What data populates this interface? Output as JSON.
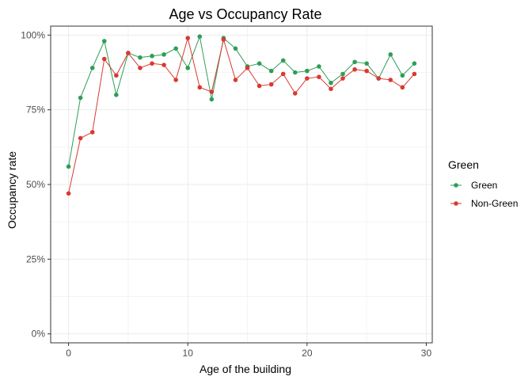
{
  "chart_data": {
    "type": "line",
    "title": "Age vs Occupancy Rate",
    "xlabel": "Age of the building",
    "ylabel": "Occupancy rate",
    "xlim": [
      -1.5,
      30.5
    ],
    "ylim": [
      -0.03,
      1.03
    ],
    "x_ticks": [
      0,
      10,
      20,
      30
    ],
    "y_ticks": [
      {
        "value": 0,
        "label": "0%"
      },
      {
        "value": 0.25,
        "label": "25%"
      },
      {
        "value": 0.5,
        "label": "50%"
      },
      {
        "value": 0.75,
        "label": "75%"
      },
      {
        "value": 1.0,
        "label": "100%"
      }
    ],
    "grid": true,
    "legend": {
      "title": "Green",
      "placement": "right"
    },
    "x": [
      0,
      1,
      2,
      3,
      4,
      5,
      6,
      7,
      8,
      9,
      10,
      11,
      12,
      13,
      14,
      15,
      16,
      17,
      18,
      19,
      20,
      21,
      22,
      23,
      24,
      25,
      26,
      27,
      28,
      29
    ],
    "series": [
      {
        "name": "Green",
        "color": "#2e9e57",
        "values": [
          0.56,
          0.79,
          0.89,
          0.98,
          0.8,
          0.94,
          0.925,
          0.93,
          0.935,
          0.955,
          0.89,
          0.995,
          0.785,
          0.99,
          0.955,
          0.895,
          0.905,
          0.88,
          0.915,
          0.875,
          0.88,
          0.895,
          0.84,
          0.87,
          0.91,
          0.905,
          0.855,
          0.935,
          0.865,
          0.905
        ]
      },
      {
        "name": "Non-Green",
        "color": "#d93a30",
        "values": [
          0.47,
          0.655,
          0.675,
          0.92,
          0.865,
          0.94,
          0.89,
          0.905,
          0.9,
          0.85,
          0.99,
          0.825,
          0.81,
          0.985,
          0.85,
          0.89,
          0.83,
          0.835,
          0.87,
          0.805,
          0.855,
          0.86,
          0.82,
          0.855,
          0.885,
          0.88,
          0.855,
          0.85,
          0.825,
          0.87
        ]
      }
    ]
  }
}
